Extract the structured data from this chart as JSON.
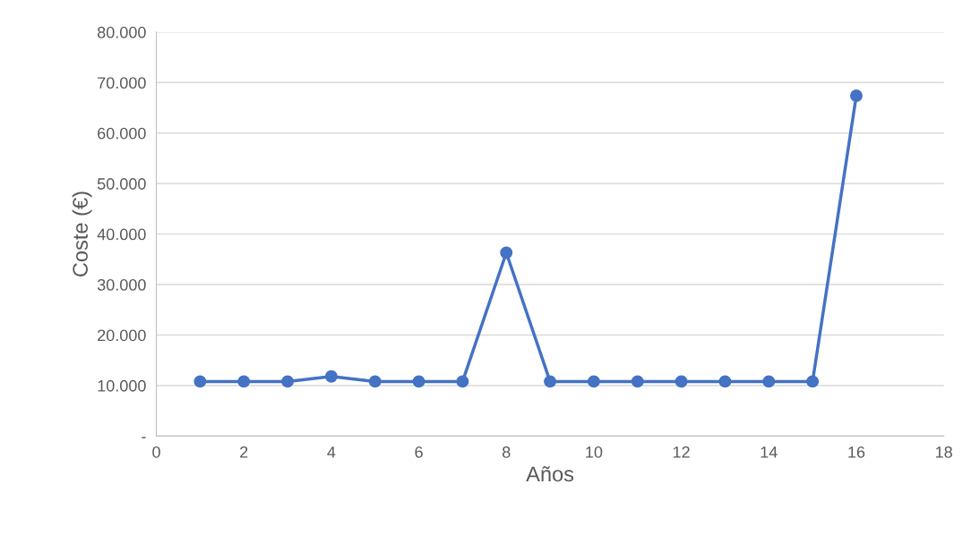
{
  "chart_data": {
    "type": "line",
    "xlabel": "Años",
    "ylabel": "Coste (€)",
    "x": [
      1,
      2,
      3,
      4,
      5,
      6,
      7,
      8,
      9,
      10,
      11,
      12,
      13,
      14,
      15,
      16
    ],
    "series": [
      {
        "color": "#4472c4",
        "values": [
          10800,
          10800,
          10800,
          11800,
          10800,
          10800,
          10800,
          36300,
          10800,
          10800,
          10800,
          10800,
          10800,
          10800,
          10800,
          67400
        ]
      }
    ],
    "xlim": [
      0,
      18
    ],
    "xticks": [
      0,
      2,
      4,
      6,
      8,
      10,
      12,
      14,
      16,
      18
    ],
    "ylim": [
      0,
      80000
    ],
    "yticks": [
      {
        "value": 0,
        "label": "-"
      },
      {
        "value": 10000,
        "label": "10.000"
      },
      {
        "value": 20000,
        "label": "20.000"
      },
      {
        "value": 30000,
        "label": "30.000"
      },
      {
        "value": 40000,
        "label": "40.000"
      },
      {
        "value": 50000,
        "label": "50.000"
      },
      {
        "value": 60000,
        "label": "60.000"
      },
      {
        "value": 70000,
        "label": "70.000"
      },
      {
        "value": 80000,
        "label": "80.000"
      }
    ],
    "grid": "y",
    "marker": "circle",
    "line_style": "solid"
  }
}
